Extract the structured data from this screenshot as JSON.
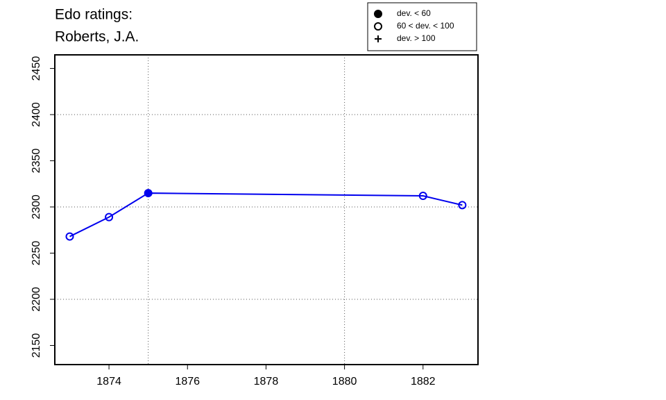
{
  "chart_data": {
    "type": "line",
    "title": [
      "Edo ratings:",
      "Roberts, J.A."
    ],
    "x": [
      1873,
      1874,
      1875,
      1882,
      1883
    ],
    "series": [
      {
        "color": "#0000ee",
        "values": [
          2268,
          2289,
          2315,
          2312,
          2302
        ],
        "point_style": [
          "open",
          "open",
          "filled",
          "open",
          "open"
        ]
      }
    ],
    "xlim": [
      1872.62,
      1883.4
    ],
    "ylim": [
      2129.3,
      2464.7
    ],
    "xticks": [
      1874,
      1876,
      1878,
      1880,
      1882
    ],
    "yticks": [
      2150,
      2200,
      2250,
      2300,
      2350,
      2400,
      2450
    ],
    "xgrid": [
      1875,
      1880
    ],
    "ygrid": [
      2200,
      2300,
      2400
    ],
    "legend": {
      "position": "top-right",
      "items": [
        {
          "label": "dev. < 60",
          "style": "filled"
        },
        {
          "label": "60 < dev. < 100",
          "style": "open"
        },
        {
          "label": "dev. > 100",
          "style": "plus"
        }
      ]
    }
  }
}
